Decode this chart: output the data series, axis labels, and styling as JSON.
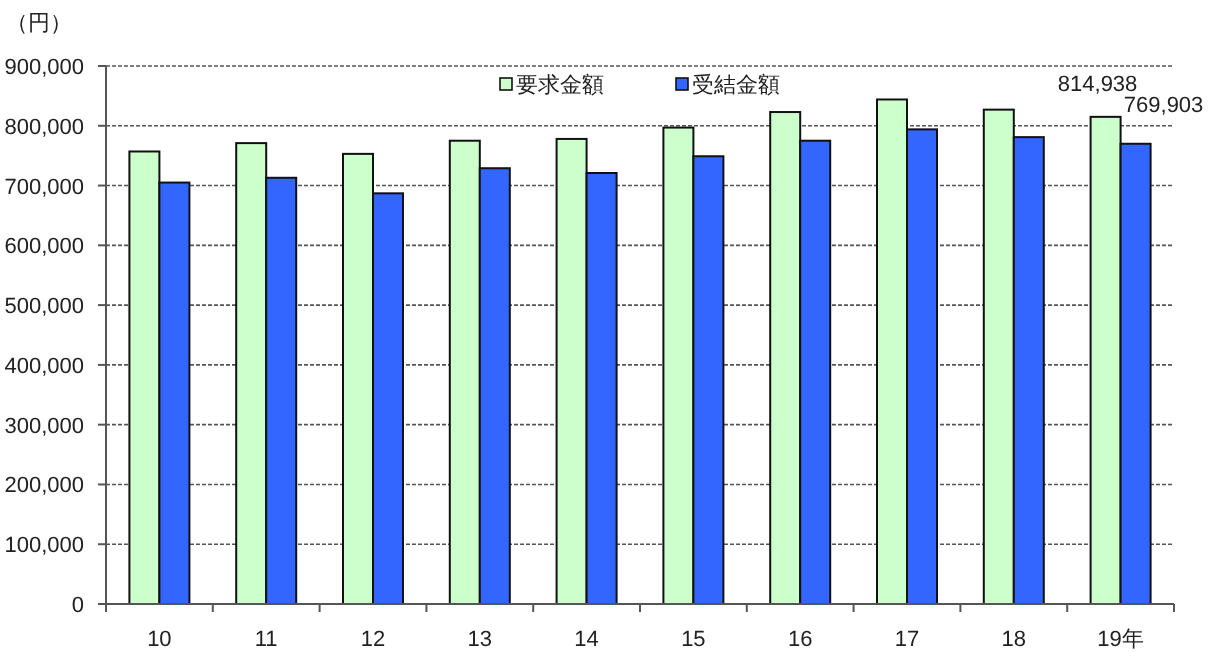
{
  "chart_data": {
    "type": "bar",
    "ylabel": "（円）",
    "categories": [
      "10",
      "11",
      "12",
      "13",
      "14",
      "15",
      "16",
      "17",
      "18",
      "19年"
    ],
    "series": [
      {
        "name": "要求金額",
        "color": "#ccffcc",
        "values": [
          757000,
          771000,
          753000,
          775000,
          778000,
          797000,
          823000,
          844000,
          827000,
          814938
        ],
        "value_labels": [
          null,
          null,
          null,
          null,
          null,
          null,
          null,
          null,
          null,
          "814,938"
        ]
      },
      {
        "name": "受結金額",
        "color": "#3366ff",
        "values": [
          705000,
          713000,
          687000,
          729000,
          721000,
          749000,
          775000,
          794000,
          781000,
          769903
        ],
        "value_labels": [
          null,
          null,
          null,
          null,
          null,
          null,
          null,
          null,
          null,
          "769,903"
        ]
      }
    ],
    "ylim": [
      0,
      900000
    ],
    "yticks": [
      {
        "value": 0,
        "label": "0"
      },
      {
        "value": 100000,
        "label": "100,000"
      },
      {
        "value": 200000,
        "label": "200,000"
      },
      {
        "value": 300000,
        "label": "300,000"
      },
      {
        "value": 400000,
        "label": "400,000"
      },
      {
        "value": 500000,
        "label": "500,000"
      },
      {
        "value": 600000,
        "label": "600,000"
      },
      {
        "value": 700000,
        "label": "700,000"
      },
      {
        "value": 800000,
        "label": "800,000"
      },
      {
        "value": 900000,
        "label": "900,000"
      }
    ],
    "grid": "y",
    "legend": "top"
  }
}
